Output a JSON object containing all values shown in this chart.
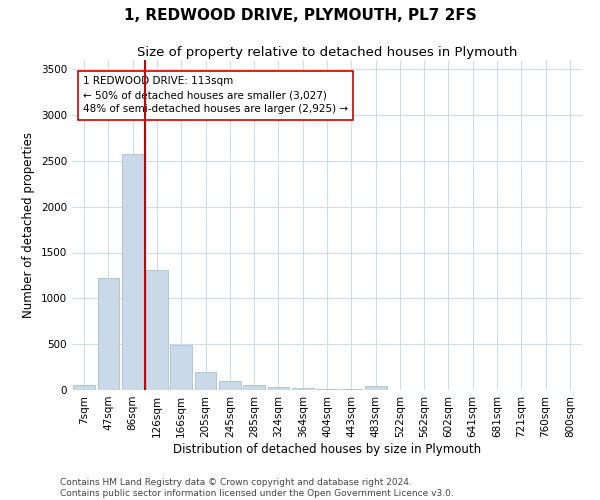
{
  "title1": "1, REDWOOD DRIVE, PLYMOUTH, PL7 2FS",
  "title2": "Size of property relative to detached houses in Plymouth",
  "xlabel": "Distribution of detached houses by size in Plymouth",
  "ylabel": "Number of detached properties",
  "categories": [
    "7sqm",
    "47sqm",
    "86sqm",
    "126sqm",
    "166sqm",
    "205sqm",
    "245sqm",
    "285sqm",
    "324sqm",
    "364sqm",
    "404sqm",
    "443sqm",
    "483sqm",
    "522sqm",
    "562sqm",
    "602sqm",
    "641sqm",
    "681sqm",
    "721sqm",
    "760sqm",
    "800sqm"
  ],
  "values": [
    50,
    1220,
    2580,
    1310,
    490,
    200,
    100,
    55,
    30,
    20,
    15,
    10,
    40,
    5,
    5,
    3,
    3,
    2,
    2,
    2,
    2
  ],
  "bar_color": "#c9d9e8",
  "bar_edge_color": "#a0b8d0",
  "redline_x": 3.0,
  "annotation_text": "1 REDWOOD DRIVE: 113sqm\n← 50% of detached houses are smaller (3,027)\n48% of semi-detached houses are larger (2,925) →",
  "annotation_box_color": "#ffffff",
  "annotation_box_edge": "#cc0000",
  "ylim": [
    0,
    3600
  ],
  "yticks": [
    0,
    500,
    1000,
    1500,
    2000,
    2500,
    3000,
    3500
  ],
  "footer1": "Contains HM Land Registry data © Crown copyright and database right 2024.",
  "footer2": "Contains public sector information licensed under the Open Government Licence v3.0.",
  "bg_color": "#ffffff",
  "grid_color": "#d0dce8",
  "title1_fontsize": 11,
  "title2_fontsize": 9.5,
  "axis_label_fontsize": 8.5,
  "tick_fontsize": 7.5,
  "footer_fontsize": 6.5
}
